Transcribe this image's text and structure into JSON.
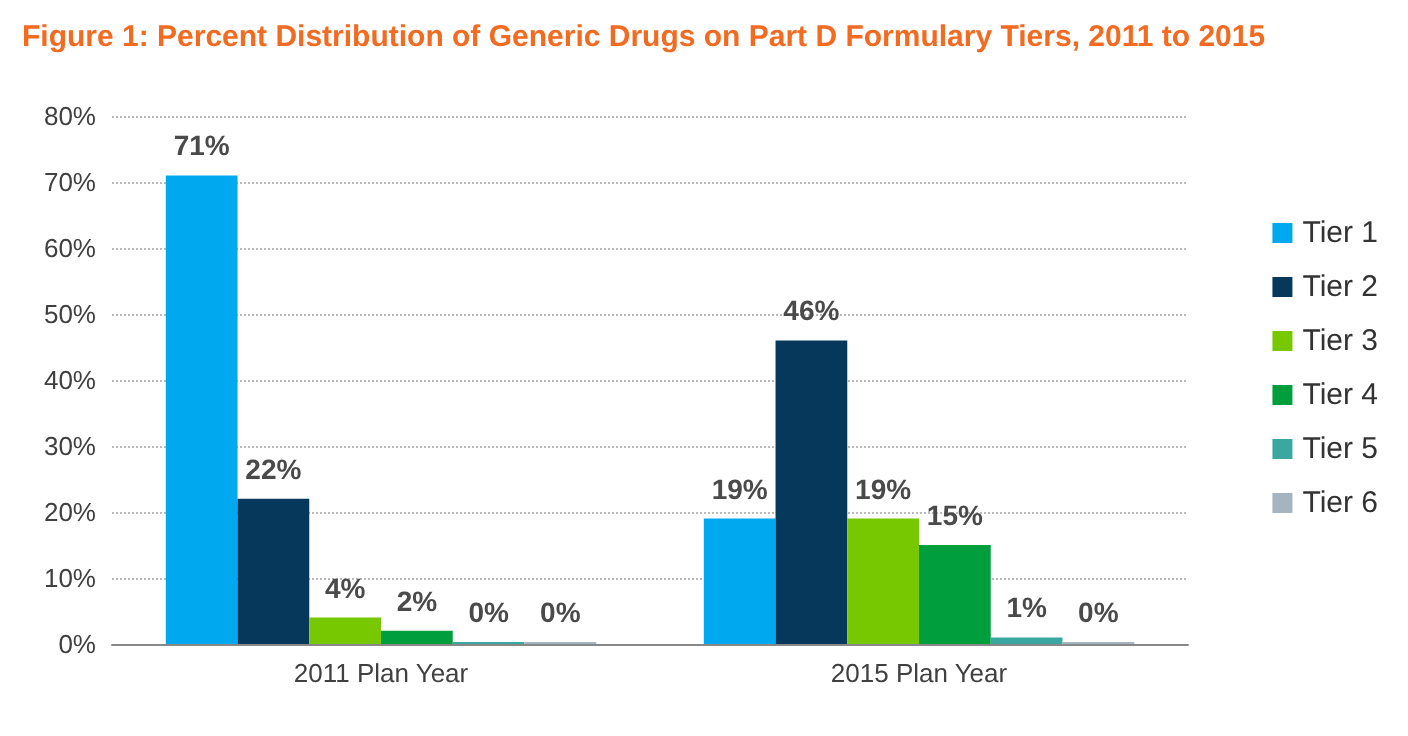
{
  "chart_data": {
    "type": "bar",
    "title": "Figure 1: Percent Distribution of Generic Drugs on Part D Formulary Tiers, 2011 to 2015",
    "categories": [
      "2011 Plan Year",
      "2015 Plan Year"
    ],
    "series": [
      {
        "name": "Tier 1",
        "color": "#00a8f0",
        "values": [
          71,
          19
        ],
        "value_labels": [
          "71%",
          "19%"
        ]
      },
      {
        "name": "Tier 2",
        "color": "#05385a",
        "values": [
          22,
          46
        ],
        "value_labels": [
          "22%",
          "46%"
        ]
      },
      {
        "name": "Tier 3",
        "color": "#77c800",
        "values": [
          4,
          19
        ],
        "value_labels": [
          "4%",
          "19%"
        ]
      },
      {
        "name": "Tier 4",
        "color": "#009e3c",
        "values": [
          2,
          15
        ],
        "value_labels": [
          "2%",
          "15%"
        ]
      },
      {
        "name": "Tier 5",
        "color": "#3aa8a0",
        "values": [
          0.3,
          1
        ],
        "value_labels": [
          "0%",
          "1%"
        ]
      },
      {
        "name": "Tier 6",
        "color": "#a5b4bf",
        "values": [
          0,
          0
        ],
        "value_labels": [
          "0%",
          "0%"
        ]
      }
    ],
    "ylim": [
      0,
      80
    ],
    "yticks": [
      {
        "value": 0,
        "label": "0%"
      },
      {
        "value": 10,
        "label": "10%"
      },
      {
        "value": 20,
        "label": "20%"
      },
      {
        "value": 30,
        "label": "30%"
      },
      {
        "value": 40,
        "label": "40%"
      },
      {
        "value": 50,
        "label": "50%"
      },
      {
        "value": 60,
        "label": "60%"
      },
      {
        "value": 70,
        "label": "70%"
      },
      {
        "value": 80,
        "label": "80%"
      }
    ],
    "grid": "y",
    "legend": "right"
  }
}
